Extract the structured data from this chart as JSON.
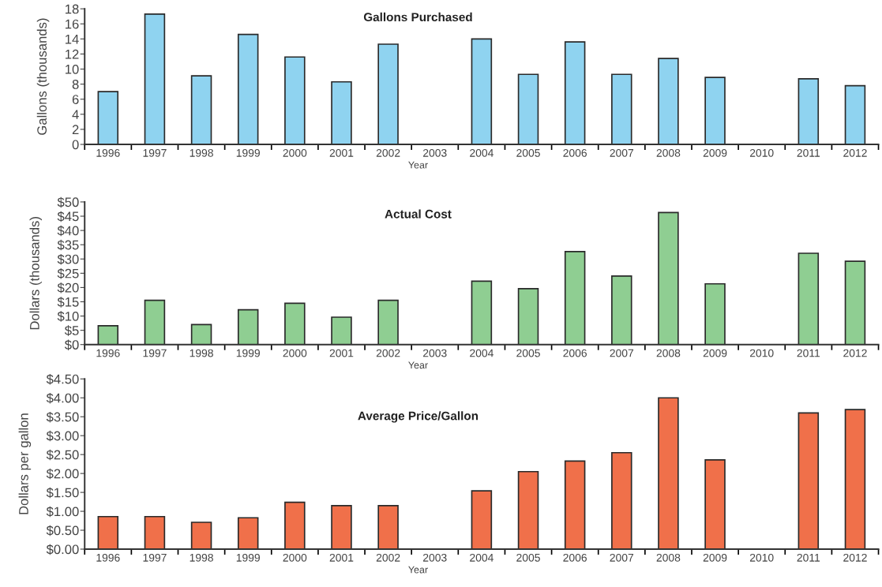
{
  "chart_data": [
    {
      "type": "bar",
      "title": "Gallons Purchased",
      "xlabel": "Year",
      "ylabel": "Gallons (thousands)",
      "categories": [
        "1996",
        "1997",
        "1998",
        "1999",
        "2000",
        "2001",
        "2002",
        "2003",
        "2004",
        "2005",
        "2006",
        "2007",
        "2008",
        "2009",
        "2010",
        "2011",
        "2012"
      ],
      "values": [
        7.0,
        17.3,
        9.1,
        14.6,
        11.6,
        8.3,
        13.3,
        null,
        14.0,
        9.3,
        13.6,
        9.3,
        11.4,
        8.9,
        null,
        8.7,
        7.8
      ],
      "color": "#8fd3f0",
      "ylim": [
        0,
        18
      ],
      "yticks": [
        0,
        2,
        4,
        6,
        8,
        10,
        12,
        14,
        16,
        18
      ]
    },
    {
      "type": "bar",
      "title": "Actual Cost",
      "xlabel": "Year",
      "ylabel": "Dollars (thousands)",
      "categories": [
        "1996",
        "1997",
        "1998",
        "1999",
        "2000",
        "2001",
        "2002",
        "2003",
        "2004",
        "2005",
        "2006",
        "2007",
        "2008",
        "2009",
        "2010",
        "2011",
        "2012"
      ],
      "values": [
        6.6,
        15.5,
        7.0,
        12.2,
        14.5,
        9.6,
        15.5,
        null,
        22.2,
        19.6,
        32.6,
        24.0,
        46.3,
        21.3,
        null,
        32.0,
        29.2
      ],
      "color": "#8fce92",
      "ylim": [
        0,
        50
      ],
      "yticks": [
        {
          "value": 0,
          "label": "$0"
        },
        {
          "value": 5,
          "label": "$5"
        },
        {
          "value": 10,
          "label": "$10"
        },
        {
          "value": 15,
          "label": "$15"
        },
        {
          "value": 20,
          "label": "$20"
        },
        {
          "value": 25,
          "label": "$25"
        },
        {
          "value": 30,
          "label": "$30"
        },
        {
          "value": 35,
          "label": "$35"
        },
        {
          "value": 40,
          "label": "$40"
        },
        {
          "value": 45,
          "label": "$45"
        },
        {
          "value": 50,
          "label": "$50"
        }
      ]
    },
    {
      "type": "bar",
      "title": "Average Price/Gallon",
      "xlabel": "Year",
      "ylabel": "Dollars per gallon",
      "categories": [
        "1996",
        "1997",
        "1998",
        "1999",
        "2000",
        "2001",
        "2002",
        "2003",
        "2004",
        "2005",
        "2006",
        "2007",
        "2008",
        "2009",
        "2010",
        "2011",
        "2012"
      ],
      "values": [
        0.86,
        0.86,
        0.71,
        0.83,
        1.24,
        1.15,
        1.15,
        null,
        1.54,
        2.05,
        2.33,
        2.55,
        4.0,
        2.36,
        null,
        3.6,
        3.69
      ],
      "color": "#f0704a",
      "ylim": [
        0,
        4.5
      ],
      "yticks": [
        {
          "value": 0,
          "label": "$0.00"
        },
        {
          "value": 0.5,
          "label": "$0.50"
        },
        {
          "value": 1,
          "label": "$1.00"
        },
        {
          "value": 1.5,
          "label": "$1.50"
        },
        {
          "value": 2,
          "label": "$2.00"
        },
        {
          "value": 2.5,
          "label": "$2.50"
        },
        {
          "value": 3,
          "label": "$3.00"
        },
        {
          "value": 3.5,
          "label": "$3.50"
        },
        {
          "value": 4,
          "label": "$4.00"
        },
        {
          "value": 4.5,
          "label": "$4.50"
        }
      ]
    }
  ]
}
